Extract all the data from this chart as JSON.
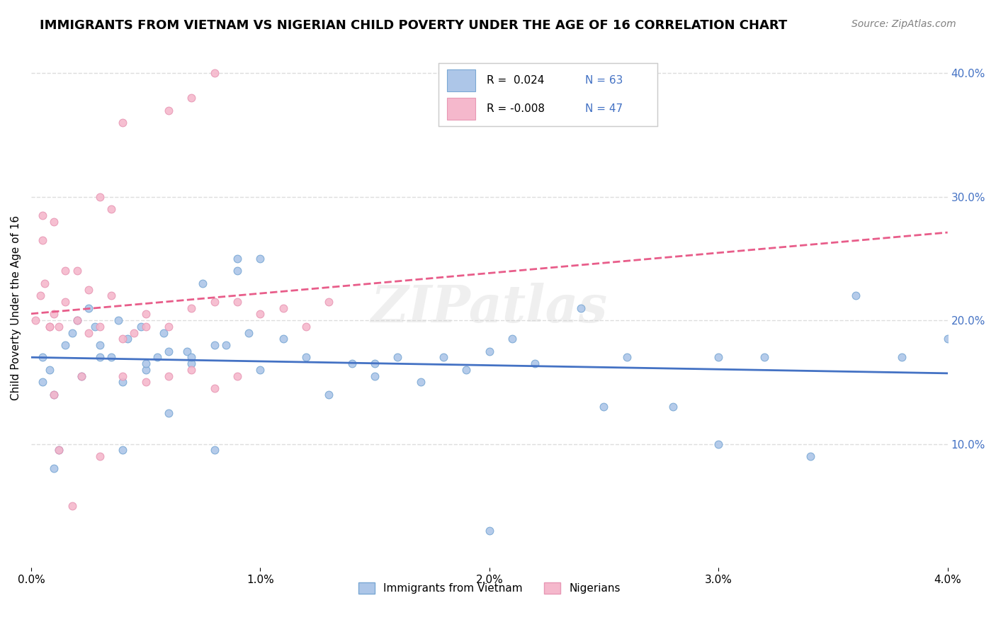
{
  "title": "IMMIGRANTS FROM VIETNAM VS NIGERIAN CHILD POVERTY UNDER THE AGE OF 16 CORRELATION CHART",
  "source": "Source: ZipAtlas.com",
  "ylabel": "Child Poverty Under the Age of 16",
  "xmin": 0.0,
  "xmax": 0.04,
  "ymin": 0.0,
  "ymax": 0.42,
  "yticks": [
    0.1,
    0.2,
    0.3,
    0.4
  ],
  "ytick_labels": [
    "10.0%",
    "20.0%",
    "30.0%",
    "40.0%"
  ],
  "legend_r_blue": "0.024",
  "legend_n_blue": "63",
  "legend_r_pink": "-0.008",
  "legend_n_pink": "47",
  "legend_label_blue": "Immigrants from Vietnam",
  "legend_label_pink": "Nigerians",
  "watermark": "ZIPatlas",
  "blue_scatter_x": [
    0.0005,
    0.001,
    0.0008,
    0.0015,
    0.002,
    0.0018,
    0.0025,
    0.003,
    0.0028,
    0.0035,
    0.004,
    0.0038,
    0.0042,
    0.005,
    0.0048,
    0.0055,
    0.006,
    0.0058,
    0.007,
    0.0068,
    0.008,
    0.0075,
    0.009,
    0.0085,
    0.01,
    0.0095,
    0.011,
    0.012,
    0.013,
    0.014,
    0.015,
    0.016,
    0.017,
    0.018,
    0.019,
    0.02,
    0.021,
    0.022,
    0.024,
    0.026,
    0.028,
    0.03,
    0.032,
    0.034,
    0.036,
    0.038,
    0.04,
    0.0005,
    0.001,
    0.0012,
    0.0022,
    0.003,
    0.004,
    0.005,
    0.006,
    0.007,
    0.008,
    0.009,
    0.01,
    0.015,
    0.02,
    0.025,
    0.03
  ],
  "blue_scatter_y": [
    0.17,
    0.14,
    0.16,
    0.18,
    0.2,
    0.19,
    0.21,
    0.18,
    0.195,
    0.17,
    0.15,
    0.2,
    0.185,
    0.16,
    0.195,
    0.17,
    0.175,
    0.19,
    0.165,
    0.175,
    0.18,
    0.23,
    0.24,
    0.18,
    0.16,
    0.19,
    0.185,
    0.17,
    0.14,
    0.165,
    0.155,
    0.17,
    0.15,
    0.17,
    0.16,
    0.175,
    0.185,
    0.165,
    0.21,
    0.17,
    0.13,
    0.1,
    0.17,
    0.09,
    0.22,
    0.17,
    0.185,
    0.15,
    0.08,
    0.095,
    0.155,
    0.17,
    0.095,
    0.165,
    0.125,
    0.17,
    0.095,
    0.25,
    0.25,
    0.165,
    0.03,
    0.13,
    0.17
  ],
  "pink_scatter_x": [
    0.0002,
    0.0004,
    0.0006,
    0.0008,
    0.001,
    0.0012,
    0.0015,
    0.002,
    0.0025,
    0.003,
    0.0035,
    0.004,
    0.0045,
    0.005,
    0.006,
    0.007,
    0.008,
    0.009,
    0.01,
    0.011,
    0.012,
    0.013,
    0.0005,
    0.001,
    0.0015,
    0.002,
    0.003,
    0.004,
    0.005,
    0.006,
    0.007,
    0.008,
    0.0025,
    0.0035,
    0.0005,
    0.0008,
    0.001,
    0.0012,
    0.0018,
    0.0022,
    0.003,
    0.004,
    0.005,
    0.006,
    0.007,
    0.008,
    0.009
  ],
  "pink_scatter_y": [
    0.2,
    0.22,
    0.23,
    0.195,
    0.205,
    0.195,
    0.215,
    0.2,
    0.225,
    0.195,
    0.22,
    0.185,
    0.19,
    0.205,
    0.195,
    0.21,
    0.215,
    0.215,
    0.205,
    0.21,
    0.195,
    0.215,
    0.265,
    0.28,
    0.24,
    0.24,
    0.3,
    0.36,
    0.195,
    0.37,
    0.38,
    0.4,
    0.19,
    0.29,
    0.285,
    0.195,
    0.14,
    0.095,
    0.05,
    0.155,
    0.09,
    0.155,
    0.15,
    0.155,
    0.16,
    0.145,
    0.155
  ],
  "trend_blue_color": "#4472c4",
  "trend_pink_color": "#e85d8a",
  "scatter_blue_color": "#adc6e8",
  "scatter_pink_color": "#f5b8cc",
  "scatter_edge_blue": "#7aa8d4",
  "scatter_edge_pink": "#e898b5",
  "background_color": "#ffffff",
  "grid_color": "#dddddd",
  "title_fontsize": 13,
  "axis_label_fontsize": 11,
  "tick_fontsize": 11
}
